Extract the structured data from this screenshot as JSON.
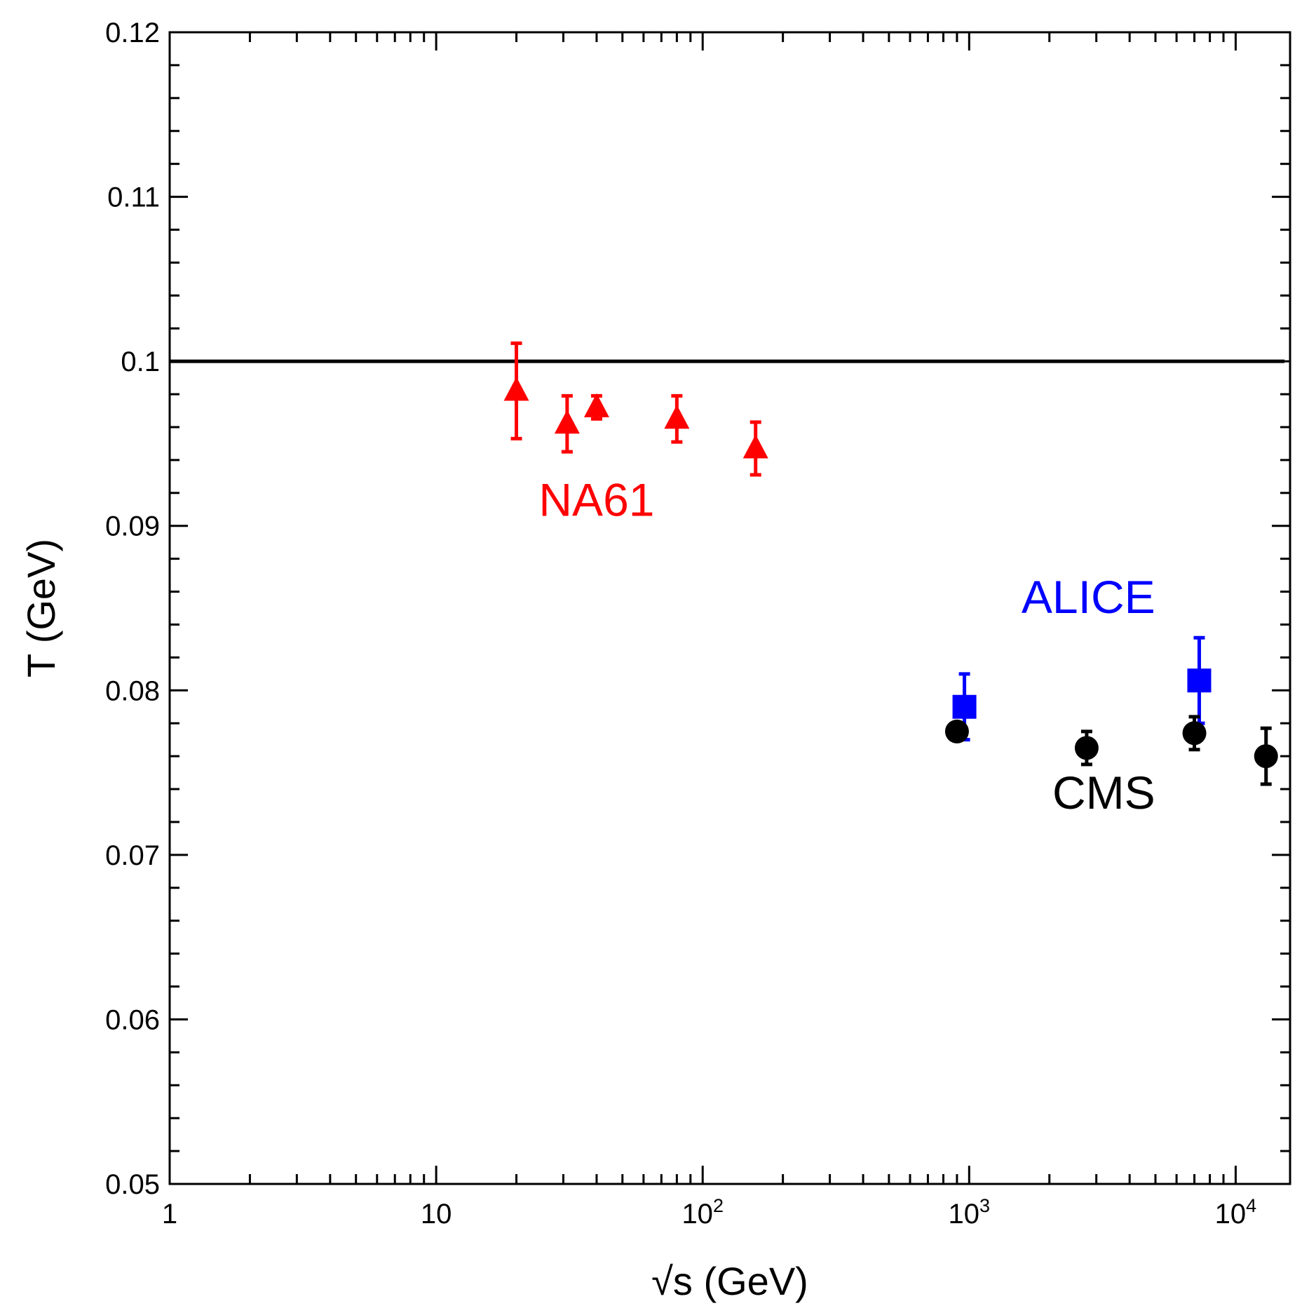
{
  "chart_data": {
    "type": "scatter",
    "title": "",
    "xlabel": "√s (GeV)",
    "ylabel": "T (GeV)",
    "xscale": "log",
    "xlim": [
      1,
      16000
    ],
    "ylim": [
      0.05,
      0.12
    ],
    "x_ticks": [
      {
        "value": 1,
        "base": "1",
        "exp": ""
      },
      {
        "value": 10,
        "base": "10",
        "exp": ""
      },
      {
        "value": 100,
        "base": "10",
        "exp": "2"
      },
      {
        "value": 1000,
        "base": "10",
        "exp": "3"
      },
      {
        "value": 10000,
        "base": "10",
        "exp": "4"
      }
    ],
    "y_ticks": [
      "0.05",
      "0.06",
      "0.07",
      "0.08",
      "0.09",
      "0.1",
      "0.11",
      "0.12"
    ],
    "reference_line": {
      "y": 0.1,
      "color": "#000000"
    },
    "series": [
      {
        "name": "NA61",
        "color": "#ff0000",
        "marker": "triangle",
        "points": [
          {
            "x": 20,
            "y": 0.0982,
            "err_lo": 0.0029,
            "err_hi": 0.0029
          },
          {
            "x": 31,
            "y": 0.0962,
            "err_lo": 0.0017,
            "err_hi": 0.0017
          },
          {
            "x": 40,
            "y": 0.0972,
            "err_lo": 0.0007,
            "err_hi": 0.0007
          },
          {
            "x": 80,
            "y": 0.0965,
            "err_lo": 0.0014,
            "err_hi": 0.0014
          },
          {
            "x": 158,
            "y": 0.0947,
            "err_lo": 0.0016,
            "err_hi": 0.0016
          }
        ]
      },
      {
        "name": "ALICE",
        "color": "#0000ff",
        "marker": "square",
        "points": [
          {
            "x": 960,
            "y": 0.079,
            "err_lo": 0.002,
            "err_hi": 0.002
          },
          {
            "x": 7300,
            "y": 0.0806,
            "err_lo": 0.0026,
            "err_hi": 0.0026
          }
        ]
      },
      {
        "name": "CMS",
        "color": "#000000",
        "marker": "circle",
        "points": [
          {
            "x": 900,
            "y": 0.0775,
            "err_lo": 0.0004,
            "err_hi": 0.0004
          },
          {
            "x": 2760,
            "y": 0.0765,
            "err_lo": 0.001,
            "err_hi": 0.001
          },
          {
            "x": 7000,
            "y": 0.0774,
            "err_lo": 0.001,
            "err_hi": 0.001
          },
          {
            "x": 13000,
            "y": 0.076,
            "err_lo": 0.0017,
            "err_hi": 0.0017
          }
        ]
      }
    ],
    "labels": [
      {
        "series": "NA61",
        "text": "NA61",
        "x": 40,
        "y": 0.0906
      },
      {
        "series": "ALICE",
        "text": "ALICE",
        "x": 2800,
        "y": 0.0847
      },
      {
        "series": "CMS",
        "text": "CMS",
        "x": 3200,
        "y": 0.0728
      }
    ]
  }
}
